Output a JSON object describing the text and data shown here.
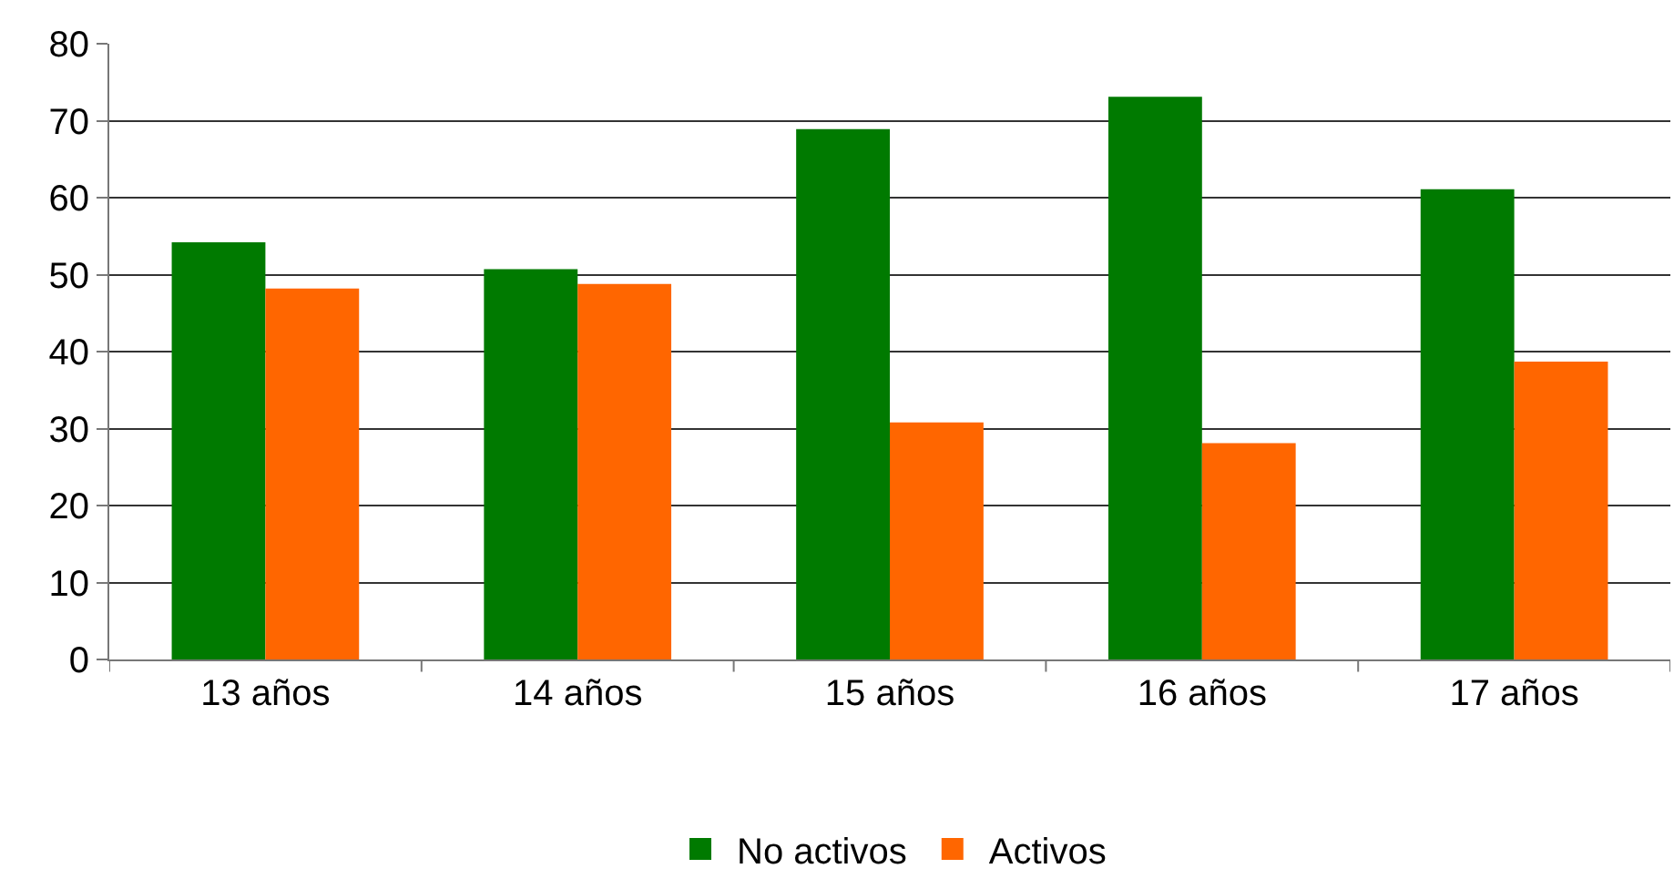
{
  "chart_data": {
    "type": "bar",
    "categories": [
      "13 años",
      "14 años",
      "15 años",
      "16 años",
      "17 años"
    ],
    "series": [
      {
        "name": "No activos",
        "color": "#007a00",
        "values": [
          54.2,
          50.7,
          68.9,
          73.1,
          61.1
        ]
      },
      {
        "name": "Activos",
        "color": "#ff6600",
        "values": [
          48.2,
          48.8,
          30.8,
          28.1,
          38.7
        ]
      }
    ],
    "ylim": [
      0,
      80
    ],
    "yticks": [
      0,
      10,
      20,
      30,
      40,
      50,
      60,
      70,
      80
    ],
    "grid": "y",
    "legend": "bottom"
  }
}
